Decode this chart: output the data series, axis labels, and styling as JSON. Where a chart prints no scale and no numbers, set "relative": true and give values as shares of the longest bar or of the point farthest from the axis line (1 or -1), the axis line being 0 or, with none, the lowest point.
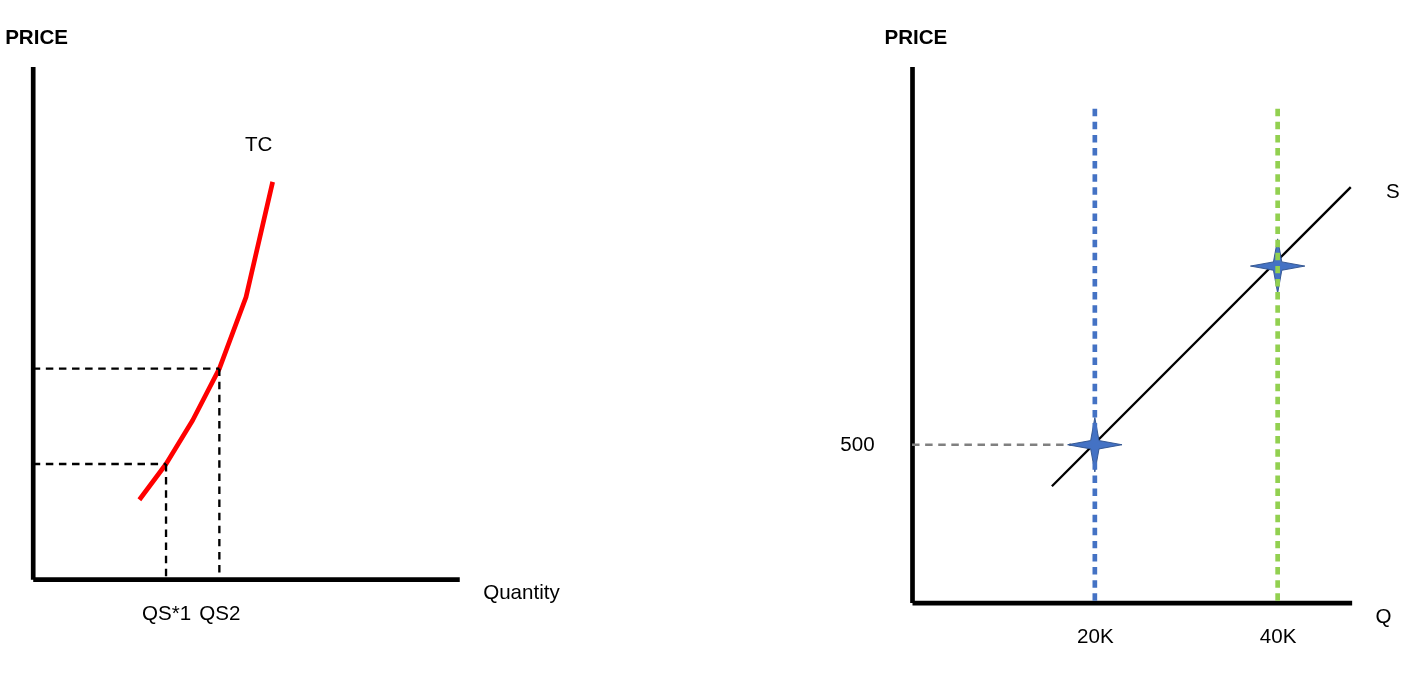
{
  "chart_data": [
    {
      "type": "line",
      "relative": true,
      "xlabel": "Quantity",
      "ylabel": "PRICE",
      "categories": [
        null,
        null,
        null,
        null,
        null,
        "QS*1",
        null,
        "QS2",
        null,
        null,
        null,
        null,
        null,
        null,
        null,
        null,
        null
      ],
      "ref_lines": [
        {
          "axis": "x",
          "value": "QS*1",
          "color": "#000000",
          "line_style": "dashed"
        },
        {
          "axis": "x",
          "value": "QS2",
          "color": "#000000",
          "line_style": "dashed"
        }
      ],
      "series": [
        {
          "name": "TC",
          "color": "#ff0000",
          "values": [
            null,
            null,
            null,
            null,
            0.2,
            0.29,
            0.4,
            0.53,
            0.71,
            1.0,
            null,
            null,
            null,
            null,
            null,
            null,
            null
          ]
        },
        {
          "color": "#000000",
          "line_style": "dashed",
          "values": [
            0.29,
            0.29,
            0.29,
            0.29,
            0.29,
            0.29,
            null,
            null,
            null,
            null,
            null,
            null,
            null,
            null,
            null,
            null,
            null
          ]
        },
        {
          "color": "#000000",
          "line_style": "dashed",
          "values": [
            0.53,
            0.53,
            0.53,
            0.53,
            0.53,
            0.53,
            0.53,
            0.53,
            null,
            null,
            null,
            null,
            null,
            null,
            null,
            null,
            null
          ]
        }
      ]
    },
    {
      "type": "line",
      "relative": true,
      "xlabel": "Q",
      "ylabel": "PRICE",
      "xlim": [
        0,
        48100
      ],
      "xticks": [
        {
          "value": 20000,
          "label": "20K"
        },
        {
          "value": 40000,
          "label": "40K"
        }
      ],
      "tick_labels": "x",
      "annotations": [
        "500"
      ],
      "ref_lines": [
        {
          "axis": "x",
          "value": 20000,
          "color": "#4472c4",
          "line_style": "dashed"
        },
        {
          "axis": "x",
          "value": 40000,
          "color": "#92d050",
          "line_style": "dashed"
        }
      ],
      "series": [
        {
          "name": "S",
          "color": "#000000",
          "x": [
            15300,
            48000
          ],
          "values": [
            0.28,
            1.0
          ]
        },
        {
          "color": "#808080",
          "line_style": "dashed",
          "x": [
            0,
            17400
          ],
          "values": [
            0.38,
            0.38
          ]
        },
        {
          "type": "scatter",
          "marker": "star",
          "color": "#4472c4",
          "x": [
            20000,
            40000
          ],
          "values": [
            0.38,
            0.81
          ]
        }
      ]
    }
  ]
}
